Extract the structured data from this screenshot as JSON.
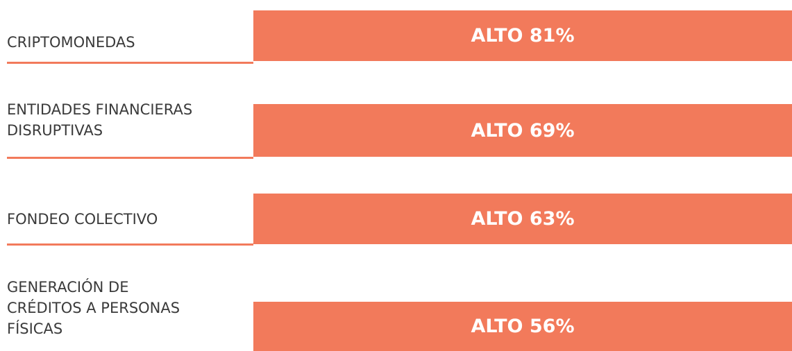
{
  "rows": [
    {
      "label": [
        "CRIPTOMONEDAS"
      ],
      "rating": "ALTO 81%"
    },
    {
      "label": [
        "ENTIDADES FINANCIERAS",
        "DISRUPTIVAS"
      ],
      "rating": "ALTO 69%"
    },
    {
      "label": [
        "FONDEO COLECTIVO"
      ],
      "rating": "ALTO 63%"
    },
    {
      "label": [
        "GENERACIÓN DE",
        "CRÉDITOS A PERSONAS",
        "FÍSICAS"
      ],
      "rating": "ALTO 56%"
    }
  ]
}
